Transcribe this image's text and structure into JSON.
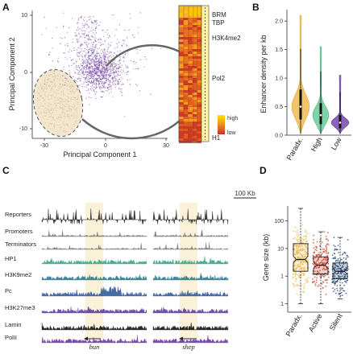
{
  "panels": {
    "A": {
      "letter": "A",
      "xlabel": "Principal Component 1",
      "ylabel": "Principal Component 2",
      "xticks": [
        "-30",
        "0",
        "30"
      ],
      "yticks": [
        "10",
        "0",
        "-10"
      ],
      "heatmap_labels": [
        "BRM",
        "TBP",
        "H3K4me2",
        "Pol2",
        "H1"
      ],
      "legend": {
        "high": "high",
        "low": "low"
      },
      "colors": {
        "paradox": "#ecd9b8",
        "points": "#6a3a9a",
        "heat_high": "#ffe600",
        "heat_low": "#c8302a"
      }
    },
    "B": {
      "letter": "B",
      "ylabel": "Enhancer density per kb",
      "yticks": [
        "0.0",
        "0.5",
        "1.0",
        "1.5",
        "2.0"
      ],
      "categories": [
        "Paradx.",
        "High",
        "Low"
      ],
      "colors": [
        "#f2c46b",
        "#7fd3a8",
        "#8a63b8"
      ]
    },
    "C": {
      "letter": "C",
      "scale": "100 Kb",
      "tracks": [
        "Reporters",
        "Promoters",
        "Terminators",
        "HP1",
        "H3K9me2",
        "Pc",
        "H3K27me3",
        "Lamin",
        "PolII"
      ],
      "genes": [
        "bun",
        "shep"
      ],
      "track_colors": [
        "#222222",
        "#777777",
        "#777777",
        "#3aa48a",
        "#2f7a8c",
        "#355a9c",
        "#5b3f9e",
        "#111111",
        "#6a3aa0"
      ]
    },
    "D": {
      "letter": "D",
      "ylabel": "Gene size (kb)",
      "yticks": [
        "100",
        "10",
        "1",
        ".1"
      ],
      "categories": [
        "Paradx.",
        "Active",
        "Silent"
      ],
      "colors": [
        "#e8b84a",
        "#c8432a",
        "#2a4a78"
      ]
    }
  },
  "chart_data": [
    {
      "type": "scatter",
      "title": "",
      "xlabel": "Principal Component 1",
      "ylabel": "Principal Component 2",
      "xlim": [
        -30,
        30
      ],
      "ylim": [
        -10,
        15
      ]
    },
    {
      "type": "violin",
      "ylabel": "Enhancer density per kb",
      "categories": [
        "Paradx.",
        "High",
        "Low"
      ],
      "medians": [
        0.5,
        0.35,
        0.22
      ],
      "maxima": [
        2.1,
        1.55,
        1.05
      ],
      "ylim": [
        0,
        2.2
      ]
    },
    {
      "type": "box",
      "ylabel": "Gene size (kb)",
      "categories": [
        "Paradx.",
        "Active",
        "Silent"
      ],
      "medians": [
        4,
        2.5,
        1.5
      ],
      "q1": [
        1.5,
        1.2,
        0.8
      ],
      "q3": [
        15,
        5,
        3
      ],
      "ylim": [
        0.05,
        300
      ],
      "scale": "log"
    }
  ]
}
